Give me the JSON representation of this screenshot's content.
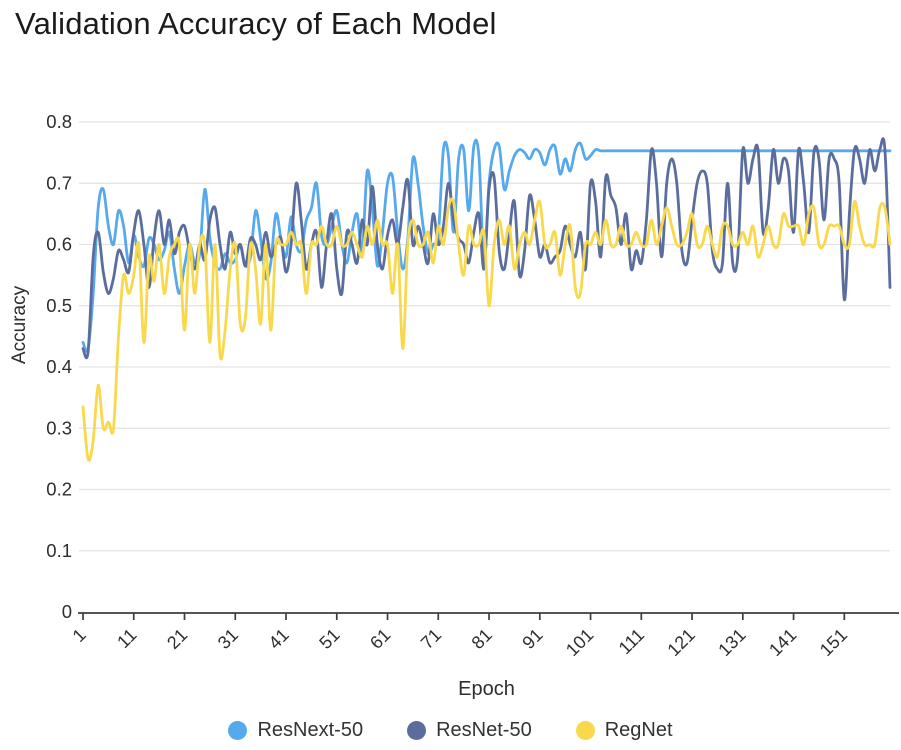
{
  "header": {
    "title": "Validation Accuracy of Each Model"
  },
  "axes": {
    "x_title": "Epoch",
    "y_title": "Accuracy"
  },
  "chart_data": {
    "type": "line",
    "title": "Validation Accuracy of Each Model",
    "xlabel": "Epoch",
    "ylabel": "Accuracy",
    "x_start": 1,
    "x_end": 160,
    "x_ticks": [
      1,
      11,
      21,
      31,
      41,
      51,
      61,
      71,
      81,
      91,
      101,
      111,
      121,
      131,
      141,
      151
    ],
    "y_ticks": [
      "0",
      "0.1",
      "0.2",
      "0.3",
      "0.4",
      "0.5",
      "0.6",
      "0.7",
      "0.8"
    ],
    "ylim": [
      0,
      0.8
    ],
    "grid": "horizontal",
    "legend_position": "bottom",
    "colors": {
      "grid": "#e3e3e3",
      "axis": "#3d3d3d",
      "tick_text": "#2e2e2e",
      "title_text": "#1b1b1b"
    },
    "series": [
      {
        "name": "ResNext-50",
        "color": "#57a9ed",
        "values": [
          0.44,
          0.43,
          0.52,
          0.66,
          0.69,
          0.63,
          0.6,
          0.655,
          0.63,
          0.57,
          0.615,
          0.58,
          0.565,
          0.61,
          0.6,
          0.575,
          0.59,
          0.62,
          0.56,
          0.52,
          0.565,
          0.6,
          0.57,
          0.585,
          0.69,
          0.61,
          0.57,
          0.56,
          0.585,
          0.57,
          0.575,
          0.6,
          0.565,
          0.58,
          0.655,
          0.61,
          0.545,
          0.57,
          0.65,
          0.61,
          0.58,
          0.645,
          0.6,
          0.59,
          0.64,
          0.66,
          0.7,
          0.615,
          0.6,
          0.63,
          0.655,
          0.6,
          0.57,
          0.62,
          0.65,
          0.59,
          0.72,
          0.66,
          0.565,
          0.62,
          0.7,
          0.71,
          0.62,
          0.56,
          0.61,
          0.74,
          0.7,
          0.63,
          0.585,
          0.6,
          0.615,
          0.755,
          0.745,
          0.62,
          0.74,
          0.755,
          0.655,
          0.76,
          0.745,
          0.57,
          0.7,
          0.755,
          0.76,
          0.69,
          0.72,
          0.745,
          0.755,
          0.75,
          0.74,
          0.755,
          0.75,
          0.73,
          0.755,
          0.76,
          0.715,
          0.74,
          0.72,
          0.755,
          0.765,
          0.74,
          0.745,
          0.755,
          0.753,
          0.753,
          0.753,
          0.753,
          0.753,
          0.753,
          0.753,
          0.753,
          0.753,
          0.753,
          0.753,
          0.753,
          0.753,
          0.753,
          0.753,
          0.753,
          0.753,
          0.753,
          0.753,
          0.753,
          0.753,
          0.753,
          0.753,
          0.753,
          0.753,
          0.753,
          0.753,
          0.753,
          0.753,
          0.753,
          0.753,
          0.753,
          0.753,
          0.753,
          0.753,
          0.753,
          0.753,
          0.753,
          0.753,
          0.753,
          0.753,
          0.753,
          0.753,
          0.753,
          0.753,
          0.753,
          0.753,
          0.753,
          0.753,
          0.753,
          0.753,
          0.753,
          0.753,
          0.753,
          0.753,
          0.753,
          0.753,
          0.753
        ]
      },
      {
        "name": "ResNet-50",
        "color": "#5a6d9d",
        "values": [
          0.43,
          0.425,
          0.58,
          0.62,
          0.555,
          0.52,
          0.545,
          0.59,
          0.575,
          0.555,
          0.62,
          0.655,
          0.6,
          0.53,
          0.61,
          0.655,
          0.6,
          0.64,
          0.585,
          0.62,
          0.63,
          0.59,
          0.56,
          0.6,
          0.575,
          0.64,
          0.66,
          0.6,
          0.56,
          0.62,
          0.585,
          0.6,
          0.565,
          0.61,
          0.6,
          0.575,
          0.62,
          0.58,
          0.6,
          0.61,
          0.555,
          0.6,
          0.7,
          0.64,
          0.56,
          0.6,
          0.62,
          0.53,
          0.6,
          0.65,
          0.56,
          0.52,
          0.62,
          0.6,
          0.57,
          0.64,
          0.6,
          0.695,
          0.6,
          0.56,
          0.615,
          0.64,
          0.6,
          0.66,
          0.705,
          0.6,
          0.63,
          0.6,
          0.57,
          0.65,
          0.6,
          0.63,
          0.7,
          0.64,
          0.61,
          0.6,
          0.57,
          0.62,
          0.65,
          0.56,
          0.69,
          0.71,
          0.59,
          0.56,
          0.62,
          0.67,
          0.55,
          0.59,
          0.68,
          0.64,
          0.58,
          0.6,
          0.57,
          0.58,
          0.59,
          0.63,
          0.6,
          0.58,
          0.62,
          0.56,
          0.7,
          0.67,
          0.58,
          0.71,
          0.68,
          0.66,
          0.6,
          0.65,
          0.56,
          0.59,
          0.57,
          0.64,
          0.755,
          0.7,
          0.58,
          0.7,
          0.74,
          0.7,
          0.59,
          0.57,
          0.64,
          0.7,
          0.72,
          0.7,
          0.59,
          0.56,
          0.57,
          0.7,
          0.57,
          0.58,
          0.755,
          0.7,
          0.74,
          0.755,
          0.62,
          0.66,
          0.755,
          0.7,
          0.74,
          0.72,
          0.62,
          0.755,
          0.7,
          0.62,
          0.75,
          0.74,
          0.64,
          0.74,
          0.74,
          0.7,
          0.51,
          0.65,
          0.755,
          0.74,
          0.7,
          0.755,
          0.72,
          0.755,
          0.755,
          0.53
        ]
      },
      {
        "name": "RegNet",
        "color": "#f8d94e",
        "values": [
          0.335,
          0.25,
          0.28,
          0.37,
          0.3,
          0.31,
          0.3,
          0.45,
          0.55,
          0.52,
          0.55,
          0.6,
          0.44,
          0.58,
          0.54,
          0.6,
          0.52,
          0.58,
          0.6,
          0.6,
          0.46,
          0.6,
          0.52,
          0.6,
          0.6,
          0.44,
          0.6,
          0.42,
          0.46,
          0.56,
          0.6,
          0.47,
          0.48,
          0.6,
          0.56,
          0.47,
          0.6,
          0.46,
          0.6,
          0.6,
          0.6,
          0.62,
          0.6,
          0.6,
          0.52,
          0.6,
          0.6,
          0.63,
          0.6,
          0.6,
          0.63,
          0.6,
          0.6,
          0.62,
          0.6,
          0.58,
          0.63,
          0.6,
          0.64,
          0.6,
          0.6,
          0.52,
          0.6,
          0.43,
          0.6,
          0.64,
          0.6,
          0.6,
          0.62,
          0.57,
          0.63,
          0.6,
          0.66,
          0.67,
          0.6,
          0.55,
          0.63,
          0.6,
          0.6,
          0.62,
          0.5,
          0.6,
          0.64,
          0.6,
          0.63,
          0.56,
          0.6,
          0.62,
          0.6,
          0.64,
          0.67,
          0.6,
          0.6,
          0.62,
          0.55,
          0.6,
          0.63,
          0.53,
          0.52,
          0.6,
          0.6,
          0.62,
          0.6,
          0.64,
          0.6,
          0.6,
          0.63,
          0.6,
          0.6,
          0.62,
          0.6,
          0.6,
          0.64,
          0.6,
          0.63,
          0.66,
          0.63,
          0.6,
          0.6,
          0.62,
          0.65,
          0.6,
          0.6,
          0.63,
          0.6,
          0.58,
          0.63,
          0.63,
          0.6,
          0.6,
          0.62,
          0.6,
          0.63,
          0.58,
          0.6,
          0.63,
          0.6,
          0.6,
          0.65,
          0.63,
          0.63,
          0.63,
          0.6,
          0.65,
          0.66,
          0.6,
          0.6,
          0.63,
          0.63,
          0.63,
          0.6,
          0.6,
          0.67,
          0.63,
          0.6,
          0.6,
          0.6,
          0.66,
          0.66,
          0.6
        ]
      }
    ]
  }
}
